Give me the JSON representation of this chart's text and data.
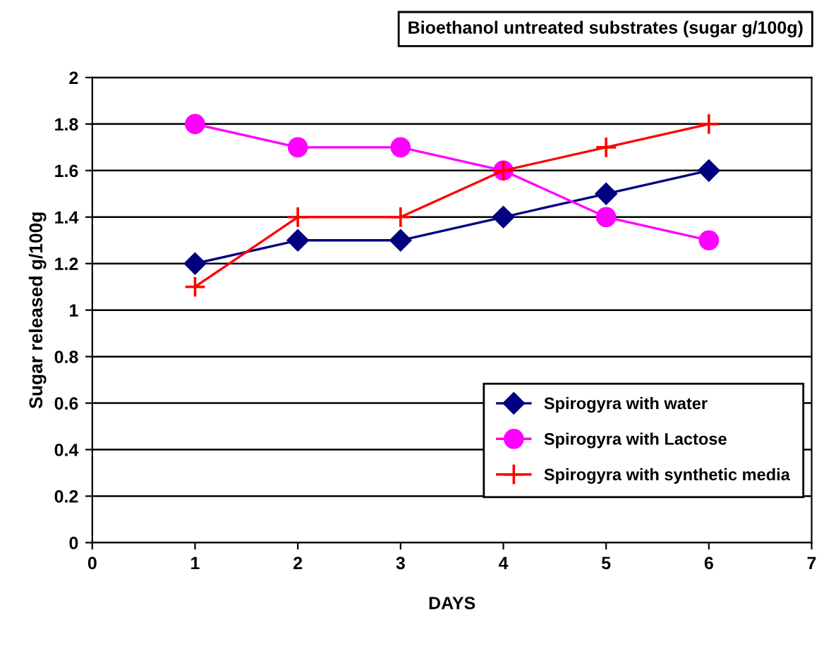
{
  "chart_data": {
    "type": "line",
    "title": "Bioethanol untreated substrates (sugar g/100g)",
    "xlabel": "DAYS",
    "ylabel": "Sugar released g/100g",
    "x": [
      1,
      2,
      3,
      4,
      5,
      6
    ],
    "series": [
      {
        "name": "Spirogyra with water",
        "color": "#000080",
        "marker": "diamond",
        "values": [
          1.2,
          1.3,
          1.3,
          1.4,
          1.5,
          1.6
        ]
      },
      {
        "name": "Spirogyra with Lactose",
        "color": "#ff00ff",
        "marker": "circle",
        "values": [
          1.8,
          1.7,
          1.7,
          1.6,
          1.4,
          1.3
        ]
      },
      {
        "name": "Spirogyra with synthetic media",
        "color": "#ff0000",
        "marker": "cross",
        "values": [
          1.1,
          1.4,
          1.4,
          1.6,
          1.7,
          1.8
        ]
      }
    ],
    "xlim": [
      0,
      7
    ],
    "xticks": [
      0,
      1,
      2,
      3,
      4,
      5,
      6,
      7
    ],
    "ylim": [
      0,
      2
    ],
    "yticks": [
      0,
      0.2,
      0.4,
      0.6,
      0.8,
      1,
      1.2,
      1.4,
      1.6,
      1.8,
      2
    ],
    "grid": "y",
    "legend": "bottom right",
    "line_style": "solid"
  }
}
